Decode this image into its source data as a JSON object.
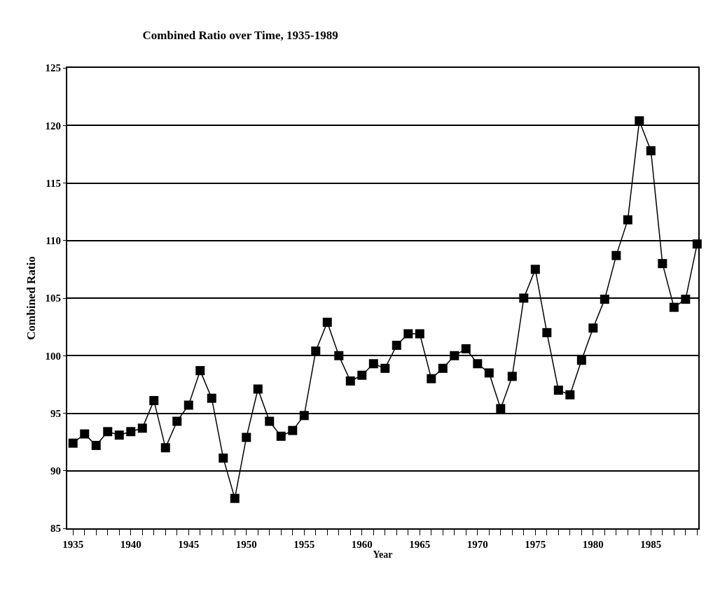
{
  "chart_data": {
    "type": "line",
    "title": "Combined Ratio over Time, 1935-1989",
    "xlabel": "Year",
    "ylabel": "Combined Ratio",
    "x": [
      1935,
      1936,
      1937,
      1938,
      1939,
      1940,
      1941,
      1942,
      1943,
      1944,
      1945,
      1946,
      1947,
      1948,
      1949,
      1950,
      1951,
      1952,
      1953,
      1954,
      1955,
      1956,
      1957,
      1958,
      1959,
      1960,
      1961,
      1962,
      1963,
      1964,
      1965,
      1966,
      1967,
      1968,
      1969,
      1970,
      1971,
      1972,
      1973,
      1974,
      1975,
      1976,
      1977,
      1978,
      1979,
      1980,
      1981,
      1982,
      1983,
      1984,
      1985,
      1986,
      1987,
      1988,
      1989
    ],
    "series": [
      {
        "color": "#000000",
        "values": [
          92.4,
          93.2,
          92.2,
          93.4,
          93.1,
          93.4,
          93.7,
          96.1,
          92.0,
          94.3,
          95.7,
          98.7,
          96.3,
          91.1,
          87.6,
          92.9,
          97.1,
          94.3,
          93.0,
          93.5,
          94.8,
          100.4,
          102.9,
          100.0,
          97.8,
          98.3,
          99.3,
          98.9,
          100.9,
          101.9,
          101.9,
          98.0,
          98.9,
          100.0,
          100.6,
          99.3,
          98.5,
          95.4,
          98.2,
          105.0,
          107.5,
          102.0,
          97.0,
          96.6,
          99.6,
          102.4,
          104.9,
          108.7,
          111.8,
          120.4,
          117.8,
          108.0,
          104.2,
          104.9,
          109.7
        ]
      }
    ],
    "xlim": [
      1934.5,
      1989.1
    ],
    "xticks": [
      1935,
      {
        "value": 1936,
        "label": null
      },
      {
        "value": 1937,
        "label": null
      },
      {
        "value": 1938,
        "label": null
      },
      {
        "value": 1939,
        "label": null
      },
      1940,
      {
        "value": 1941,
        "label": null
      },
      {
        "value": 1942,
        "label": null
      },
      {
        "value": 1943,
        "label": null
      },
      {
        "value": 1944,
        "label": null
      },
      1945,
      {
        "value": 1946,
        "label": null
      },
      {
        "value": 1947,
        "label": null
      },
      {
        "value": 1948,
        "label": null
      },
      {
        "value": 1949,
        "label": null
      },
      1950,
      {
        "value": 1951,
        "label": null
      },
      {
        "value": 1952,
        "label": null
      },
      {
        "value": 1953,
        "label": null
      },
      {
        "value": 1954,
        "label": null
      },
      1955,
      {
        "value": 1956,
        "label": null
      },
      {
        "value": 1957,
        "label": null
      },
      {
        "value": 1958,
        "label": null
      },
      {
        "value": 1959,
        "label": null
      },
      1960,
      {
        "value": 1961,
        "label": null
      },
      {
        "value": 1962,
        "label": null
      },
      {
        "value": 1963,
        "label": null
      },
      {
        "value": 1964,
        "label": null
      },
      1965,
      {
        "value": 1966,
        "label": null
      },
      {
        "value": 1967,
        "label": null
      },
      {
        "value": 1968,
        "label": null
      },
      {
        "value": 1969,
        "label": null
      },
      1970,
      {
        "value": 1971,
        "label": null
      },
      {
        "value": 1972,
        "label": null
      },
      {
        "value": 1973,
        "label": null
      },
      {
        "value": 1974,
        "label": null
      },
      1975,
      {
        "value": 1976,
        "label": null
      },
      {
        "value": 1977,
        "label": null
      },
      {
        "value": 1978,
        "label": null
      },
      {
        "value": 1979,
        "label": null
      },
      1980,
      {
        "value": 1981,
        "label": null
      },
      {
        "value": 1982,
        "label": null
      },
      {
        "value": 1983,
        "label": null
      },
      {
        "value": 1984,
        "label": null
      },
      1985,
      {
        "value": 1986,
        "label": null
      },
      {
        "value": 1987,
        "label": null
      },
      {
        "value": 1988,
        "label": null
      },
      {
        "value": 1989,
        "label": null
      }
    ],
    "ylim": [
      85,
      125
    ],
    "yticks": [
      85,
      90,
      95,
      100,
      105,
      110,
      115,
      120,
      125
    ],
    "grid": "y",
    "legend": false,
    "marker": "square",
    "line_style": "solid"
  }
}
